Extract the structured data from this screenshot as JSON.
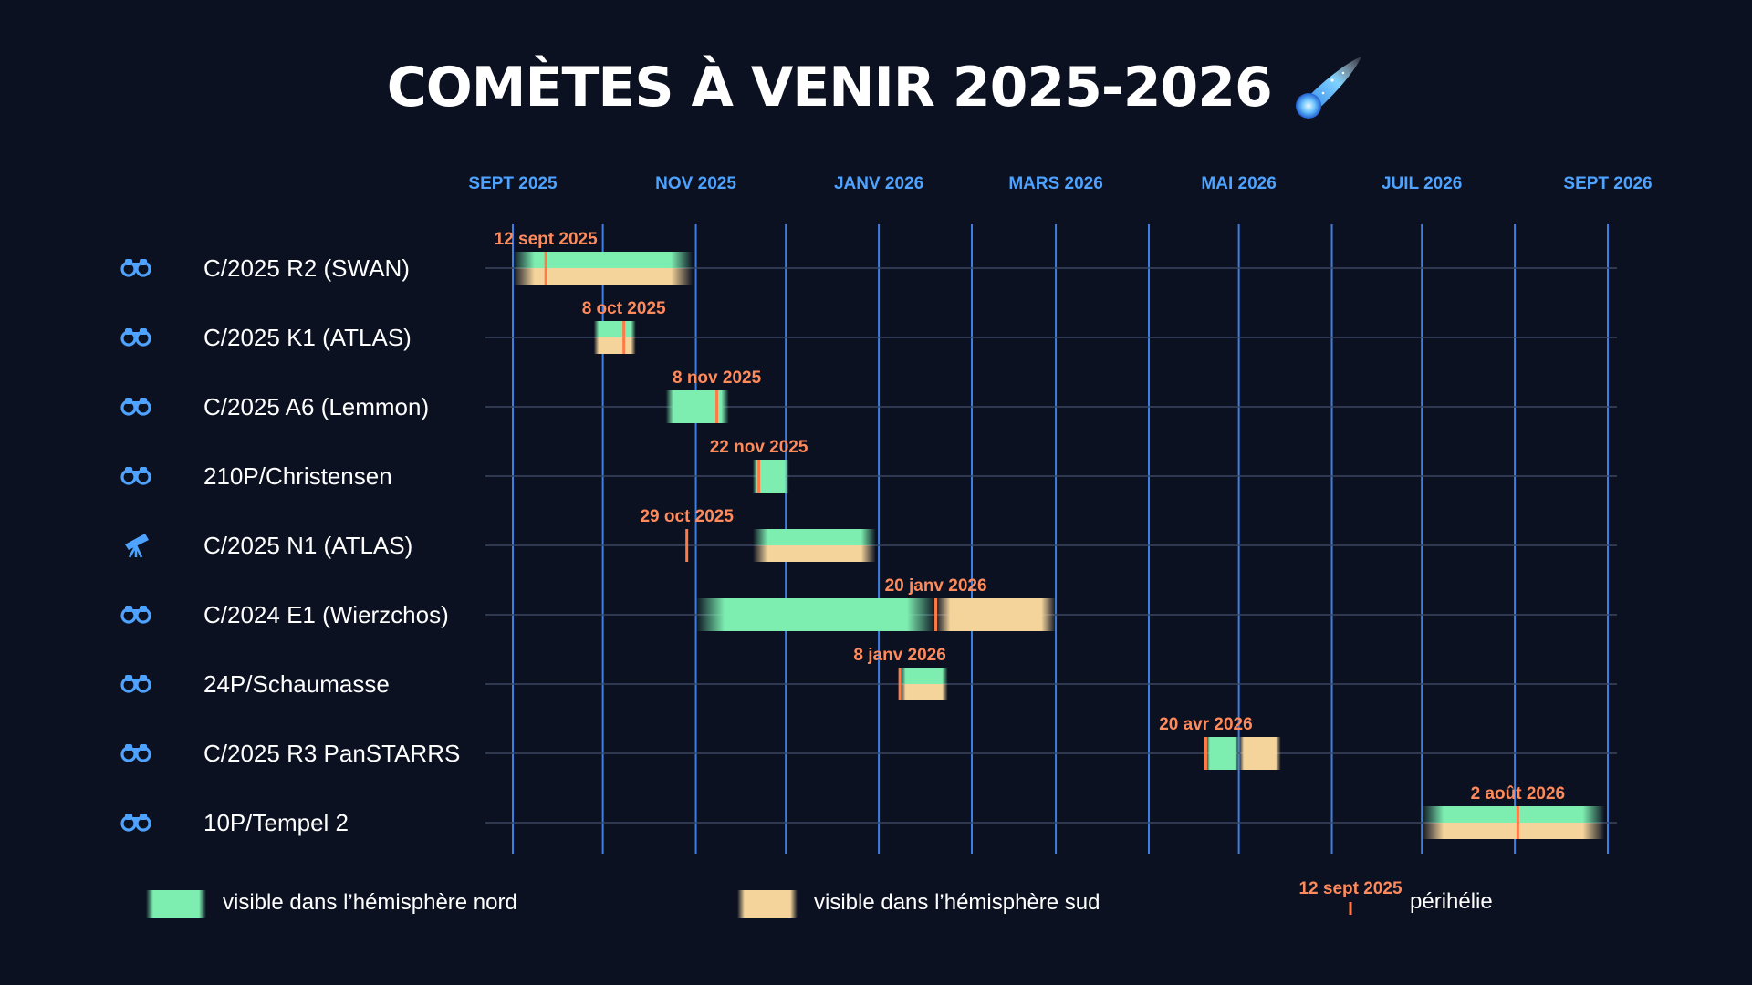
{
  "title": "COMÈTES À VENIR 2025-2026",
  "title_icon": "comet-icon",
  "colors": {
    "background": "#0b1120",
    "grid": "#3d7fe0",
    "month_labels": "#4da3ff",
    "north": "#7dedb0",
    "south": "#f4d49b",
    "perihelion": "#ff7a45",
    "perihelion_label": "#ff8a5c"
  },
  "chart_data": {
    "type": "gantt",
    "x_axis": {
      "type": "date",
      "range": [
        "2025-09-01",
        "2026-09-01"
      ],
      "tick_labels": [
        "SEPT 2025",
        "NOV 2025",
        "JANV 2026",
        "MARS 2026",
        "MAI 2026",
        "JUIL 2026",
        "SEPT 2026"
      ],
      "tick_dates": [
        "2025-09-01",
        "2025-11-01",
        "2026-01-01",
        "2026-03-01",
        "2026-05-01",
        "2026-07-01",
        "2026-09-01"
      ],
      "gridline_dates": [
        "2025-09-01",
        "2025-10-01",
        "2025-11-01",
        "2025-12-01",
        "2026-01-01",
        "2026-02-01",
        "2026-03-01",
        "2026-04-01",
        "2026-05-01",
        "2026-06-01",
        "2026-07-01",
        "2026-08-01",
        "2026-09-01"
      ],
      "label_position": "top"
    },
    "grid": true,
    "comets": [
      {
        "name": "C/2025 R2 (SWAN)",
        "icon": "binoculars-icon",
        "perihelion": "2025-09-12",
        "perihelion_label": "12 sept 2025",
        "north": [
          "2025-09-01",
          "2025-10-31"
        ],
        "south": [
          "2025-09-01",
          "2025-10-31"
        ]
      },
      {
        "name": "C/2025 K1 (ATLAS)",
        "icon": "binoculars-icon",
        "perihelion": "2025-10-08",
        "perihelion_label": "8 oct 2025",
        "north": [
          "2025-09-28",
          "2025-10-12"
        ],
        "south": [
          "2025-09-28",
          "2025-10-12"
        ]
      },
      {
        "name": "C/2025 A6 (Lemmon)",
        "icon": "binoculars-icon",
        "perihelion": "2025-11-08",
        "perihelion_label": "8 nov 2025",
        "north": [
          "2025-10-22",
          "2025-11-12"
        ],
        "south": null
      },
      {
        "name": "210P/Christensen",
        "icon": "binoculars-icon",
        "perihelion": "2025-11-22",
        "perihelion_label": "22 nov 2025",
        "north": [
          "2025-11-20",
          "2025-12-02"
        ],
        "south": null
      },
      {
        "name": "C/2025 N1 (ATLAS)",
        "icon": "telescope-icon",
        "perihelion": "2025-10-29",
        "perihelion_label": "29 oct 2025",
        "north": [
          "2025-11-20",
          "2025-12-31"
        ],
        "south": [
          "2025-11-20",
          "2025-12-31"
        ]
      },
      {
        "name": "C/2024 E1 (Wierzchos)",
        "icon": "binoculars-icon",
        "perihelion": "2026-01-20",
        "perihelion_label": "20 janv 2026",
        "north": [
          "2025-11-01",
          "2026-01-20"
        ],
        "south": [
          "2026-01-20",
          "2026-03-01"
        ]
      },
      {
        "name": "24P/Schaumasse",
        "icon": "binoculars-icon",
        "perihelion": "2026-01-08",
        "perihelion_label": "8 janv 2026",
        "north": [
          "2026-01-08",
          "2026-01-24"
        ],
        "south": [
          "2026-01-08",
          "2026-01-24"
        ]
      },
      {
        "name": "C/2025 R3 PanSTARRS",
        "icon": "binoculars-icon",
        "perihelion": "2026-04-20",
        "perihelion_label": "20 avr 2026",
        "north": [
          "2026-04-20",
          "2026-05-01"
        ],
        "south": [
          "2026-05-01",
          "2026-05-15"
        ]
      },
      {
        "name": "10P/Tempel 2",
        "icon": "binoculars-icon",
        "perihelion": "2026-08-02",
        "perihelion_label": "2 août 2026",
        "north": [
          "2026-07-01",
          "2026-08-31"
        ],
        "south": [
          "2026-07-01",
          "2026-08-31"
        ]
      }
    ]
  },
  "legend": {
    "north_label": "visible dans l’hémisphère nord",
    "south_label": "visible dans l’hémisphère sud",
    "perihelion_example": "12 sept 2025",
    "perihelion_label": "périhélie"
  }
}
